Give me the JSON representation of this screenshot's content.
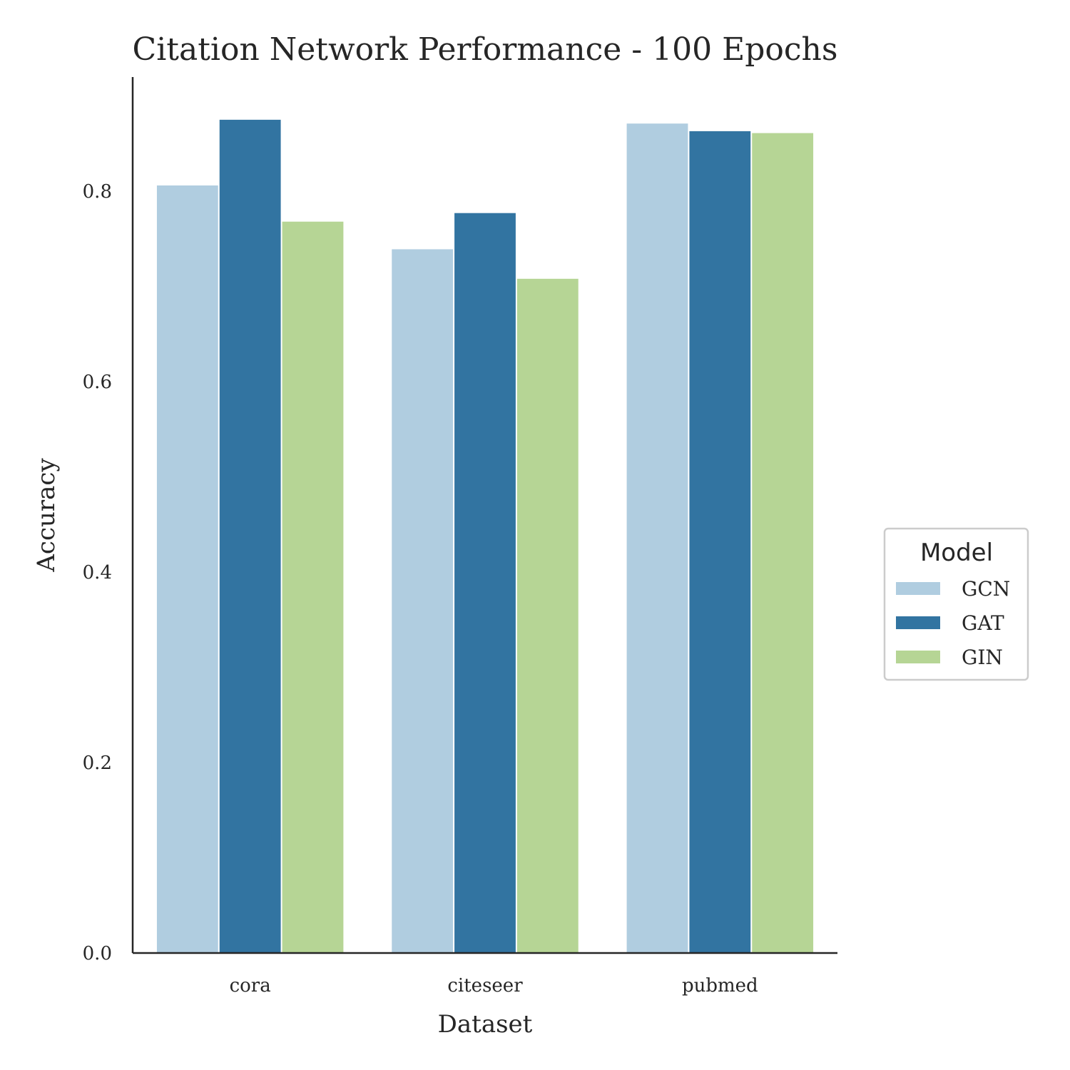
{
  "chart_data": {
    "type": "bar",
    "title": "Citation Network Performance - 100 Epochs",
    "xlabel": "Dataset",
    "ylabel": "Accuracy",
    "categories": [
      "cora",
      "citeseer",
      "pubmed"
    ],
    "series": [
      {
        "name": "GCN",
        "color": "#b0cde0",
        "values": [
          0.806,
          0.739,
          0.871
        ]
      },
      {
        "name": "GAT",
        "color": "#3274a1",
        "values": [
          0.875,
          0.777,
          0.863
        ]
      },
      {
        "name": "GIN",
        "color": "#b6d595",
        "values": [
          0.768,
          0.708,
          0.861
        ]
      }
    ],
    "yticks": [
      "0.0",
      "0.2",
      "0.4",
      "0.6",
      "0.8"
    ],
    "ylim": [
      0,
      0.92
    ],
    "grid": false,
    "legend": {
      "title": "Model",
      "placement": "center-right outside"
    }
  }
}
